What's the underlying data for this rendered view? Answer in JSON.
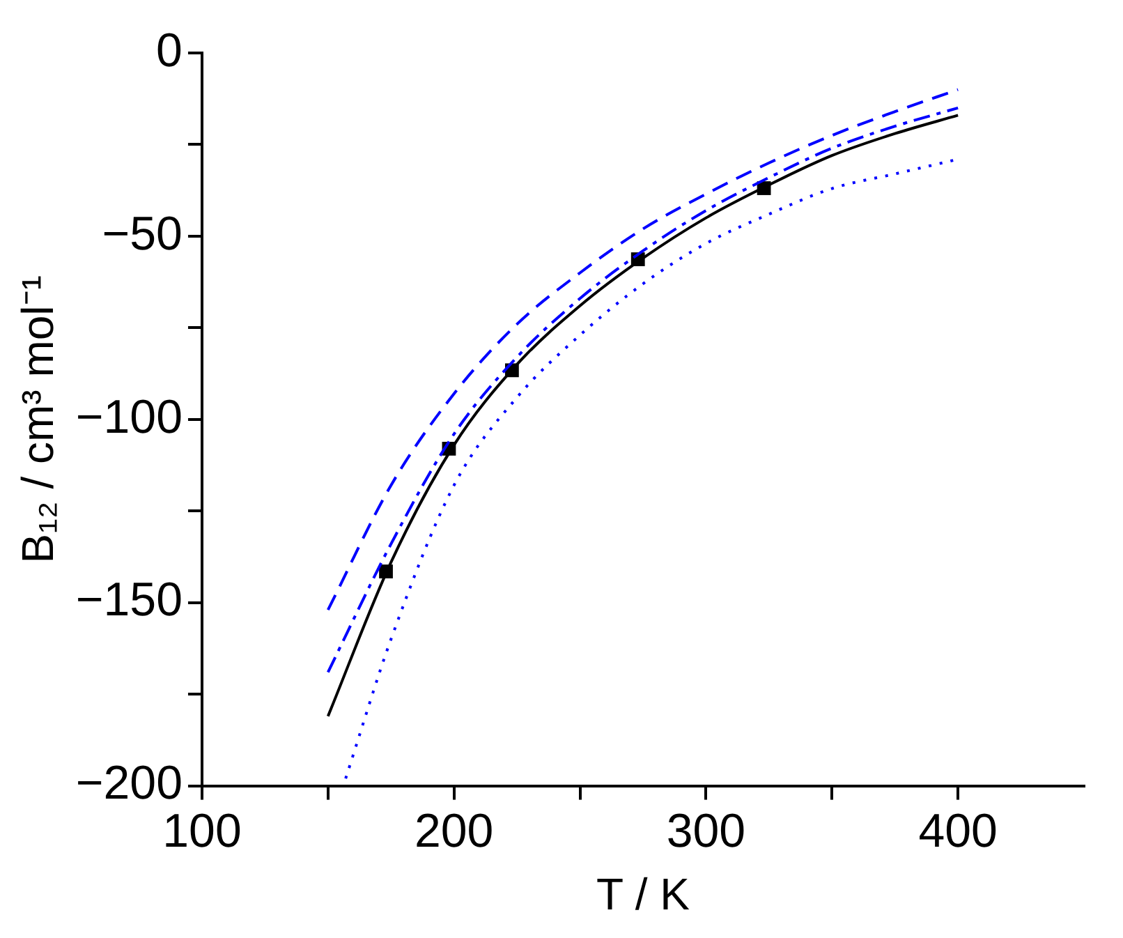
{
  "chart_data": {
    "type": "line",
    "xlabel": "T / K",
    "ylabel": "B₁₂ / cm³ mol⁻¹",
    "xlim": [
      100,
      450
    ],
    "xticks": [
      100,
      {
        "value": 150,
        "label": null
      },
      200,
      {
        "value": 250,
        "label": null
      },
      300,
      {
        "value": 350,
        "label": null
      },
      400
    ],
    "ylim": [
      -200,
      0
    ],
    "yticks": [
      -200,
      {
        "value": -175,
        "label": null
      },
      -150,
      {
        "value": -125,
        "label": null
      },
      -100,
      {
        "value": -75,
        "label": null
      },
      -50,
      {
        "value": -25,
        "label": null
      },
      0
    ],
    "grid": false,
    "legend": false,
    "series": [
      {
        "color": "#0000ff",
        "line_style": "dashed",
        "marker": "none",
        "x": [
          150,
          175,
          200,
          225,
          250,
          275,
          300,
          325,
          350,
          375,
          400
        ],
        "values": [
          -152,
          -118,
          -93,
          -74,
          -60,
          -48,
          -38.5,
          -30,
          -22.5,
          -16,
          -10
        ]
      },
      {
        "color": "#0000ff",
        "line_style": "dashdot",
        "marker": "none",
        "x": [
          150,
          175,
          200,
          225,
          250,
          275,
          300,
          325,
          350,
          375,
          400
        ],
        "values": [
          -169,
          -134,
          -104,
          -83,
          -67,
          -54,
          -43,
          -34,
          -26,
          -20,
          -15
        ]
      },
      {
        "color": "#000000",
        "line_style": "solid",
        "marker": "none",
        "x": [
          150,
          175,
          200,
          225,
          250,
          275,
          300,
          325,
          350,
          375,
          400
        ],
        "values": [
          -181,
          -139,
          -107,
          -85,
          -69,
          -56,
          -45,
          -36,
          -28,
          -22,
          -17
        ]
      },
      {
        "color": "#0000ff",
        "line_style": "dotted",
        "marker": "none",
        "x": [
          157,
          175,
          200,
          225,
          250,
          275,
          300,
          325,
          350,
          375,
          400
        ],
        "values": [
          -198,
          -160,
          -118,
          -94,
          -77,
          -63,
          -52,
          -44,
          -37,
          -33,
          -29
        ]
      },
      {
        "type": "scatter",
        "color": "#000000",
        "marker": "square",
        "x": [
          173,
          198,
          223,
          273,
          323
        ],
        "values": [
          -141.5,
          -108,
          -86.6,
          -56.3,
          -36.9
        ]
      }
    ]
  }
}
